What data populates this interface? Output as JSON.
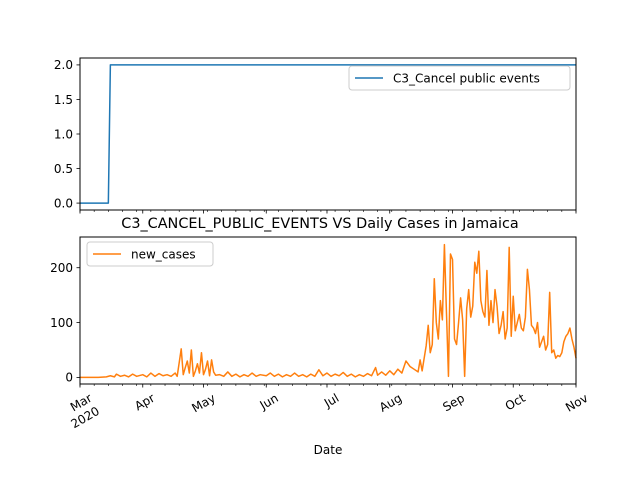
{
  "chart_data": [
    {
      "type": "line",
      "title": "",
      "xlabel": "",
      "ylabel": "",
      "ylim": [
        -0.1,
        2.1
      ],
      "yticks": [
        0.0,
        0.5,
        1.0,
        1.5,
        2.0
      ],
      "ytick_labels": [
        "0.0",
        "0.5",
        "1.0",
        "1.5",
        "2.0"
      ],
      "legend_position": "top-right",
      "grid": false,
      "series": [
        {
          "name": "C3_Cancel public events",
          "color": "#1f77b4",
          "points": [
            [
              "2020-03-01",
              0
            ],
            [
              "2020-03-15",
              0
            ],
            [
              "2020-03-16",
              2
            ],
            [
              "2020-11-01",
              2
            ]
          ]
        }
      ]
    },
    {
      "type": "line",
      "title": "C3_CANCEL_PUBLIC_EVENTS VS Daily Cases in Jamaica",
      "xlabel": "Date",
      "ylabel": "",
      "ylim": [
        -12,
        256
      ],
      "yticks": [
        0,
        100,
        200
      ],
      "ytick_labels": [
        "0",
        "100",
        "200"
      ],
      "xlim": [
        "2020-03-01",
        "2020-11-01"
      ],
      "xticks": [
        "2020-03-01",
        "2020-04-01",
        "2020-05-01",
        "2020-06-01",
        "2020-07-01",
        "2020-08-01",
        "2020-09-01",
        "2020-10-01",
        "2020-11-01"
      ],
      "xtick_labels": [
        "Mar",
        "Apr",
        "May",
        "Jun",
        "Jul",
        "Aug",
        "Sep",
        "Oct",
        "Nov"
      ],
      "xtick_year_label": "2020",
      "legend_position": "top-left",
      "grid": false,
      "series": [
        {
          "name": "new_cases",
          "color": "#ff7f0e",
          "points": [
            [
              "2020-03-01",
              0
            ],
            [
              "2020-03-10",
              0
            ],
            [
              "2020-03-14",
              1
            ],
            [
              "2020-03-16",
              3
            ],
            [
              "2020-03-18",
              1
            ],
            [
              "2020-03-19",
              6
            ],
            [
              "2020-03-21",
              2
            ],
            [
              "2020-03-23",
              4
            ],
            [
              "2020-03-25",
              1
            ],
            [
              "2020-03-27",
              6
            ],
            [
              "2020-03-29",
              2
            ],
            [
              "2020-04-01",
              5
            ],
            [
              "2020-04-03",
              1
            ],
            [
              "2020-04-05",
              8
            ],
            [
              "2020-04-07",
              2
            ],
            [
              "2020-04-09",
              7
            ],
            [
              "2020-04-11",
              3
            ],
            [
              "2020-04-13",
              5
            ],
            [
              "2020-04-15",
              2
            ],
            [
              "2020-04-17",
              8
            ],
            [
              "2020-04-18",
              2
            ],
            [
              "2020-04-20",
              52
            ],
            [
              "2020-04-21",
              5
            ],
            [
              "2020-04-22",
              18
            ],
            [
              "2020-04-23",
              30
            ],
            [
              "2020-04-24",
              8
            ],
            [
              "2020-04-25",
              50
            ],
            [
              "2020-04-26",
              2
            ],
            [
              "2020-04-27",
              12
            ],
            [
              "2020-04-28",
              25
            ],
            [
              "2020-04-29",
              8
            ],
            [
              "2020-04-30",
              45
            ],
            [
              "2020-05-01",
              5
            ],
            [
              "2020-05-02",
              15
            ],
            [
              "2020-05-03",
              30
            ],
            [
              "2020-05-04",
              3
            ],
            [
              "2020-05-05",
              32
            ],
            [
              "2020-05-06",
              10
            ],
            [
              "2020-05-07",
              4
            ],
            [
              "2020-05-09",
              5
            ],
            [
              "2020-05-11",
              2
            ],
            [
              "2020-05-13",
              10
            ],
            [
              "2020-05-15",
              2
            ],
            [
              "2020-05-17",
              6
            ],
            [
              "2020-05-19",
              1
            ],
            [
              "2020-05-21",
              5
            ],
            [
              "2020-05-23",
              2
            ],
            [
              "2020-05-25",
              8
            ],
            [
              "2020-05-27",
              2
            ],
            [
              "2020-05-29",
              5
            ],
            [
              "2020-06-01",
              3
            ],
            [
              "2020-06-03",
              8
            ],
            [
              "2020-06-05",
              2
            ],
            [
              "2020-06-07",
              6
            ],
            [
              "2020-06-09",
              1
            ],
            [
              "2020-06-11",
              5
            ],
            [
              "2020-06-13",
              2
            ],
            [
              "2020-06-15",
              8
            ],
            [
              "2020-06-17",
              2
            ],
            [
              "2020-06-19",
              5
            ],
            [
              "2020-06-21",
              1
            ],
            [
              "2020-06-23",
              6
            ],
            [
              "2020-06-25",
              2
            ],
            [
              "2020-06-27",
              14
            ],
            [
              "2020-06-29",
              3
            ],
            [
              "2020-07-01",
              8
            ],
            [
              "2020-07-03",
              2
            ],
            [
              "2020-07-05",
              6
            ],
            [
              "2020-07-07",
              3
            ],
            [
              "2020-07-09",
              9
            ],
            [
              "2020-07-11",
              2
            ],
            [
              "2020-07-13",
              6
            ],
            [
              "2020-07-15",
              1
            ],
            [
              "2020-07-17",
              5
            ],
            [
              "2020-07-19",
              2
            ],
            [
              "2020-07-21",
              7
            ],
            [
              "2020-07-23",
              3
            ],
            [
              "2020-07-25",
              18
            ],
            [
              "2020-07-26",
              4
            ],
            [
              "2020-07-28",
              10
            ],
            [
              "2020-07-30",
              4
            ],
            [
              "2020-08-01",
              12
            ],
            [
              "2020-08-03",
              5
            ],
            [
              "2020-08-05",
              15
            ],
            [
              "2020-08-07",
              8
            ],
            [
              "2020-08-09",
              30
            ],
            [
              "2020-08-11",
              20
            ],
            [
              "2020-08-13",
              15
            ],
            [
              "2020-08-15",
              10
            ],
            [
              "2020-08-16",
              32
            ],
            [
              "2020-08-17",
              12
            ],
            [
              "2020-08-18",
              35
            ],
            [
              "2020-08-19",
              58
            ],
            [
              "2020-08-20",
              95
            ],
            [
              "2020-08-21",
              45
            ],
            [
              "2020-08-22",
              60
            ],
            [
              "2020-08-23",
              180
            ],
            [
              "2020-08-24",
              100
            ],
            [
              "2020-08-25",
              70
            ],
            [
              "2020-08-26",
              140
            ],
            [
              "2020-08-27",
              105
            ],
            [
              "2020-08-28",
              242
            ],
            [
              "2020-08-29",
              120
            ],
            [
              "2020-08-30",
              2
            ],
            [
              "2020-08-31",
              225
            ],
            [
              "2020-09-01",
              215
            ],
            [
              "2020-09-02",
              70
            ],
            [
              "2020-09-03",
              60
            ],
            [
              "2020-09-04",
              100
            ],
            [
              "2020-09-05",
              145
            ],
            [
              "2020-09-06",
              105
            ],
            [
              "2020-09-07",
              2
            ],
            [
              "2020-09-08",
              125
            ],
            [
              "2020-09-09",
              160
            ],
            [
              "2020-09-10",
              110
            ],
            [
              "2020-09-11",
              130
            ],
            [
              "2020-09-12",
              210
            ],
            [
              "2020-09-13",
              190
            ],
            [
              "2020-09-14",
              230
            ],
            [
              "2020-09-15",
              140
            ],
            [
              "2020-09-16",
              120
            ],
            [
              "2020-09-17",
              110
            ],
            [
              "2020-09-18",
              195
            ],
            [
              "2020-09-19",
              95
            ],
            [
              "2020-09-20",
              140
            ],
            [
              "2020-09-21",
              100
            ],
            [
              "2020-09-22",
              160
            ],
            [
              "2020-09-23",
              130
            ],
            [
              "2020-09-24",
              80
            ],
            [
              "2020-09-25",
              95
            ],
            [
              "2020-09-26",
              120
            ],
            [
              "2020-09-27",
              70
            ],
            [
              "2020-09-28",
              90
            ],
            [
              "2020-09-29",
              237
            ],
            [
              "2020-09-30",
              75
            ],
            [
              "2020-10-01",
              148
            ],
            [
              "2020-10-02",
              85
            ],
            [
              "2020-10-03",
              100
            ],
            [
              "2020-10-04",
              115
            ],
            [
              "2020-10-05",
              90
            ],
            [
              "2020-10-06",
              85
            ],
            [
              "2020-10-07",
              110
            ],
            [
              "2020-10-08",
              197
            ],
            [
              "2020-10-09",
              160
            ],
            [
              "2020-10-10",
              95
            ],
            [
              "2020-10-11",
              90
            ],
            [
              "2020-10-12",
              80
            ],
            [
              "2020-10-13",
              100
            ],
            [
              "2020-10-14",
              55
            ],
            [
              "2020-10-15",
              65
            ],
            [
              "2020-10-16",
              75
            ],
            [
              "2020-10-17",
              50
            ],
            [
              "2020-10-18",
              60
            ],
            [
              "2020-10-19",
              155
            ],
            [
              "2020-10-20",
              45
            ],
            [
              "2020-10-21",
              50
            ],
            [
              "2020-10-22",
              35
            ],
            [
              "2020-10-23",
              40
            ],
            [
              "2020-10-24",
              38
            ],
            [
              "2020-10-25",
              45
            ],
            [
              "2020-10-26",
              65
            ],
            [
              "2020-10-27",
              75
            ],
            [
              "2020-10-28",
              80
            ],
            [
              "2020-10-29",
              90
            ],
            [
              "2020-10-30",
              70
            ],
            [
              "2020-10-31",
              55
            ],
            [
              "2020-11-01",
              35
            ]
          ]
        }
      ]
    }
  ]
}
